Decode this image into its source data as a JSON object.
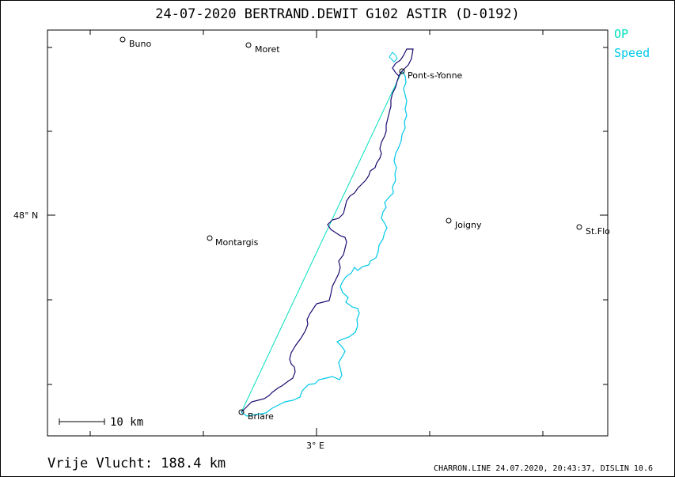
{
  "title": "24-07-2020    BERTRAND.DEWIT    G102 ASTIR (D-0192)",
  "legend": {
    "op": {
      "label": "OP",
      "color": "#00e0c0"
    },
    "speed": {
      "label": "Speed",
      "color": "#00c8e8"
    }
  },
  "axes": {
    "lat_label": "48° N",
    "lon_label": "3° E"
  },
  "scale": {
    "label": "10  km"
  },
  "towns": [
    {
      "name": "Buno"
    },
    {
      "name": "Moret"
    },
    {
      "name": "Pont-s-Yonne"
    },
    {
      "name": "Joigny"
    },
    {
      "name": "St.Flo"
    },
    {
      "name": "Montargis"
    },
    {
      "name": "Briare"
    }
  ],
  "track": {
    "primary_color": "#1a0a6e",
    "secondary_color": "#00c8e8",
    "op_line_color": "#00e0c0"
  },
  "footer": {
    "distance": "Vrije Vlucht:  188.4 km",
    "stamp": "CHARRON.LINE 24.07.2020, 20:43:37, DISLIN 10.6"
  }
}
